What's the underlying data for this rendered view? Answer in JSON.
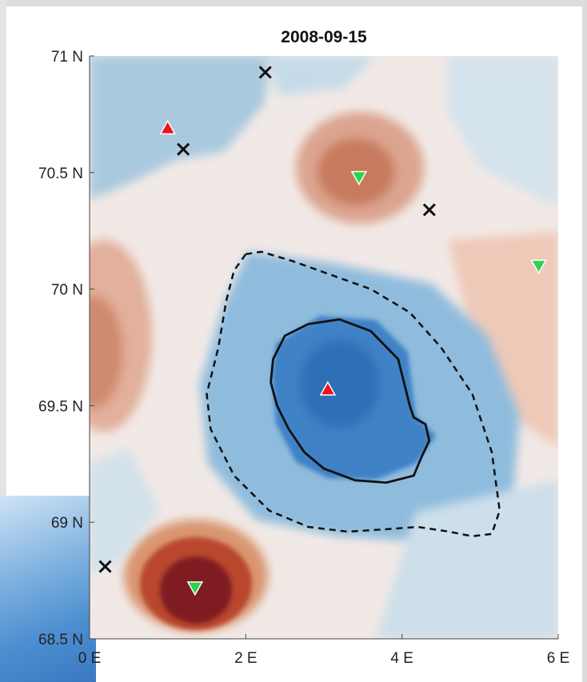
{
  "chart_data": {
    "type": "heatmap",
    "title": "2008-09-15",
    "xlabel": "",
    "ylabel": "",
    "xlim": [
      0,
      6
    ],
    "ylim": [
      68.5,
      71
    ],
    "x_ticks": [
      0,
      2,
      4,
      6
    ],
    "x_tick_labels": [
      "0 E",
      "2 E",
      "4 E",
      "6 E"
    ],
    "y_ticks": [
      68.5,
      69,
      69.5,
      70,
      70.5,
      71
    ],
    "y_tick_labels": [
      "68.5 N",
      "69 N",
      "69.5 N",
      "70 N",
      "70.5 N",
      "71 N"
    ],
    "grid": false,
    "colormap": [
      "#2a6fb8",
      "#5c9ad0",
      "#a9cbe3",
      "#f4f4f4",
      "#e8b4a0",
      "#c8684e",
      "#7a1222"
    ],
    "markers": {
      "red_up_triangles": [
        {
          "x": 1.0,
          "y": 70.69
        },
        {
          "x": 3.05,
          "y": 69.57
        }
      ],
      "green_down_triangles": [
        {
          "x": 3.45,
          "y": 70.48
        },
        {
          "x": 5.75,
          "y": 70.1
        },
        {
          "x": 1.35,
          "y": 68.72
        }
      ],
      "black_x": [
        {
          "x": 2.25,
          "y": 70.93
        },
        {
          "x": 1.2,
          "y": 70.6
        },
        {
          "x": 4.35,
          "y": 70.34
        },
        {
          "x": 0.2,
          "y": 68.81
        }
      ]
    },
    "contours": {
      "solid": [
        [
          2.35,
          69.7
        ],
        [
          2.5,
          69.8
        ],
        [
          2.8,
          69.85
        ],
        [
          3.2,
          69.87
        ],
        [
          3.6,
          69.82
        ],
        [
          3.95,
          69.7
        ],
        [
          4.1,
          69.5
        ],
        [
          4.15,
          69.45
        ],
        [
          4.3,
          69.42
        ],
        [
          4.35,
          69.35
        ],
        [
          4.25,
          69.28
        ],
        [
          4.15,
          69.2
        ],
        [
          3.8,
          69.17
        ],
        [
          3.4,
          69.18
        ],
        [
          3.0,
          69.23
        ],
        [
          2.75,
          69.3
        ],
        [
          2.55,
          69.4
        ],
        [
          2.4,
          69.5
        ],
        [
          2.32,
          69.6
        ],
        [
          2.35,
          69.7
        ]
      ],
      "dashed": [
        [
          2.0,
          70.15
        ],
        [
          2.2,
          70.16
        ],
        [
          2.6,
          70.12
        ],
        [
          3.1,
          70.06
        ],
        [
          3.6,
          70.0
        ],
        [
          4.1,
          69.9
        ],
        [
          4.5,
          69.75
        ],
        [
          4.9,
          69.55
        ],
        [
          5.15,
          69.3
        ],
        [
          5.25,
          69.05
        ],
        [
          5.15,
          68.95
        ],
        [
          4.9,
          68.94
        ],
        [
          4.6,
          68.96
        ],
        [
          4.2,
          68.98
        ],
        [
          3.8,
          68.97
        ],
        [
          3.3,
          68.96
        ],
        [
          2.8,
          68.98
        ],
        [
          2.3,
          69.05
        ],
        [
          1.85,
          69.2
        ],
        [
          1.55,
          69.4
        ],
        [
          1.5,
          69.55
        ],
        [
          1.65,
          69.75
        ],
        [
          1.75,
          69.95
        ],
        [
          1.85,
          70.08
        ],
        [
          2.0,
          70.15
        ]
      ]
    }
  }
}
